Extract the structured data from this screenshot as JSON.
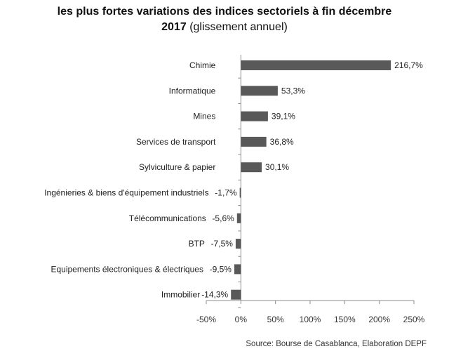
{
  "chart_data": {
    "type": "bar",
    "orientation": "horizontal",
    "title_line1": "les plus fortes variations des indices sectoriels à fin décembre",
    "title_line2_bold": "2017",
    "title_line2_sub": "(glissement annuel)",
    "categories": [
      "Chimie",
      "Informatique",
      "Mines",
      "Services de transport",
      "Sylviculture & papier",
      "Ingénieries & biens d'équipement industriels",
      "Télécommunications",
      "BTP",
      "Equipements électroniques & électriques",
      "Immobilier"
    ],
    "values": [
      216.7,
      53.3,
      39.1,
      36.8,
      30.1,
      -1.7,
      -5.6,
      -7.5,
      -9.5,
      -14.3
    ],
    "value_labels": [
      "216,7%",
      "53,3%",
      "39,1%",
      "36,8%",
      "30,1%",
      "-1,7%",
      "-5,6%",
      "-7,5%",
      "-9,5%",
      "-14,3%"
    ],
    "xlim": [
      -50,
      250
    ],
    "xticks": [
      -50,
      0,
      50,
      100,
      150,
      200,
      250
    ],
    "xtick_labels": [
      "-50%",
      "0%",
      "50%",
      "100%",
      "150%",
      "200%",
      "250%"
    ],
    "bar_color": "#595959",
    "grid": false,
    "legend": "none",
    "source": "Source: Bourse de Casablanca, Elaboration DEPF"
  }
}
